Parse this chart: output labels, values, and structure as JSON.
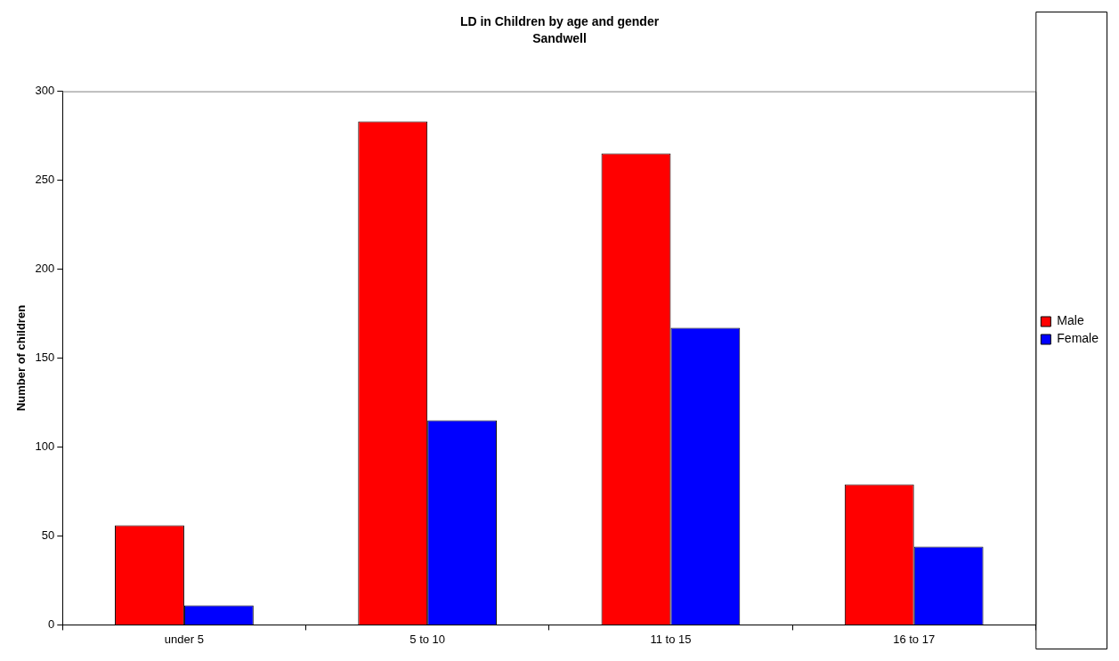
{
  "chart_data": {
    "type": "bar",
    "title": "LD in Children by age and gender",
    "subtitle": "Sandwell",
    "ylabel": "Number of children",
    "categories": [
      "under 5",
      "5 to 10",
      "11 to 15",
      "16 to 17"
    ],
    "series": [
      {
        "name": "Male",
        "color": "#ff0000",
        "values": [
          56,
          283,
          265,
          79
        ]
      },
      {
        "name": "Female",
        "color": "#0000ff",
        "values": [
          11,
          115,
          167,
          44
        ]
      }
    ],
    "ylim": [
      0,
      300
    ],
    "yticks": [
      0,
      50,
      100,
      150,
      200,
      250,
      300
    ],
    "grid": false,
    "legend": "right"
  }
}
